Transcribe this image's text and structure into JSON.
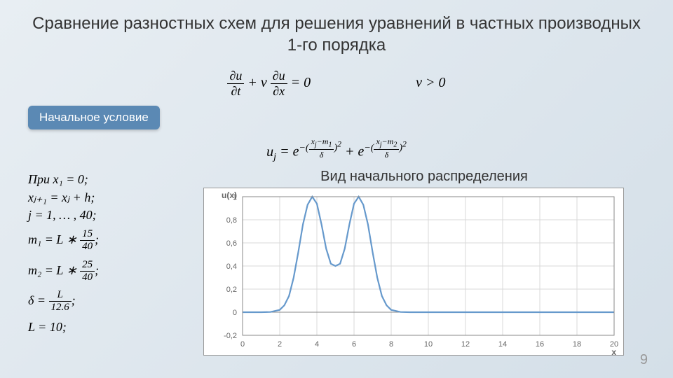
{
  "title": "Сравнение разностных схем для решения уравнений в частных производных 1-го порядка",
  "badge": "Начальное условие",
  "main_eq": {
    "lhs1_num": "∂u",
    "lhs1_den": "∂t",
    "plus": "+ v",
    "lhs2_num": "∂u",
    "lhs2_den": "∂x",
    "eq0": "= 0",
    "cond": "v > 0"
  },
  "ic_eq": "uⱼ = e^{−((xⱼ−m₁)/δ)²} + e^{−((xⱼ−m₂)/δ)²}",
  "params": {
    "l1": "При x₁ = 0;",
    "l2": "xⱼ₊₁ = xⱼ + h;",
    "l3": "j = 1, … , 40;",
    "l4_pre": "m₁ = L ∗ ",
    "l4_num": "15",
    "l4_den": "40",
    "l4_post": ";",
    "l5_pre": "m₂ = L ∗ ",
    "l5_num": "25",
    "l5_den": "40",
    "l5_post": ";",
    "l6_pre": "δ = ",
    "l6_num": "L",
    "l6_den": "12.6",
    "l6_post": ";",
    "l7": "L = 10;"
  },
  "chart": {
    "title": "Вид начального распределения",
    "ylabel": "u(x)",
    "xlabel": "x",
    "xlim": [
      0,
      20
    ],
    "ylim": [
      -0.2,
      1.0
    ],
    "xticks": [
      0,
      2,
      4,
      6,
      8,
      10,
      12,
      14,
      16,
      18,
      20
    ],
    "yticks": [
      -0.2,
      0,
      0.2,
      0.4,
      0.6,
      0.8,
      1.0
    ],
    "ytick_labels": [
      "-0,2",
      "0",
      "0,2",
      "0,4",
      "0,6",
      "0,8",
      "1"
    ],
    "line_color": "#6699cc",
    "grid_color": "#d8d8d8",
    "axis_color": "#888888",
    "text_color": "#666666",
    "data": {
      "x": [
        0,
        0.5,
        1,
        1.5,
        2,
        2.25,
        2.5,
        2.75,
        3,
        3.25,
        3.5,
        3.75,
        4,
        4.25,
        4.5,
        4.75,
        5,
        5.25,
        5.5,
        5.75,
        6,
        6.25,
        6.5,
        6.75,
        7,
        7.25,
        7.5,
        7.75,
        8,
        8.5,
        9,
        9.5,
        10,
        11,
        12,
        14,
        16,
        18,
        20
      ],
      "y": [
        0.0,
        0.0,
        0.0,
        0.002,
        0.02,
        0.06,
        0.14,
        0.3,
        0.52,
        0.76,
        0.93,
        1.0,
        0.94,
        0.76,
        0.55,
        0.42,
        0.4,
        0.42,
        0.55,
        0.76,
        0.94,
        1.0,
        0.93,
        0.76,
        0.52,
        0.3,
        0.14,
        0.06,
        0.02,
        0.002,
        0.0,
        0.0,
        0.0,
        0.0,
        0.0,
        0.0,
        0.0,
        0.0,
        0.0
      ]
    }
  },
  "page_number": "9"
}
